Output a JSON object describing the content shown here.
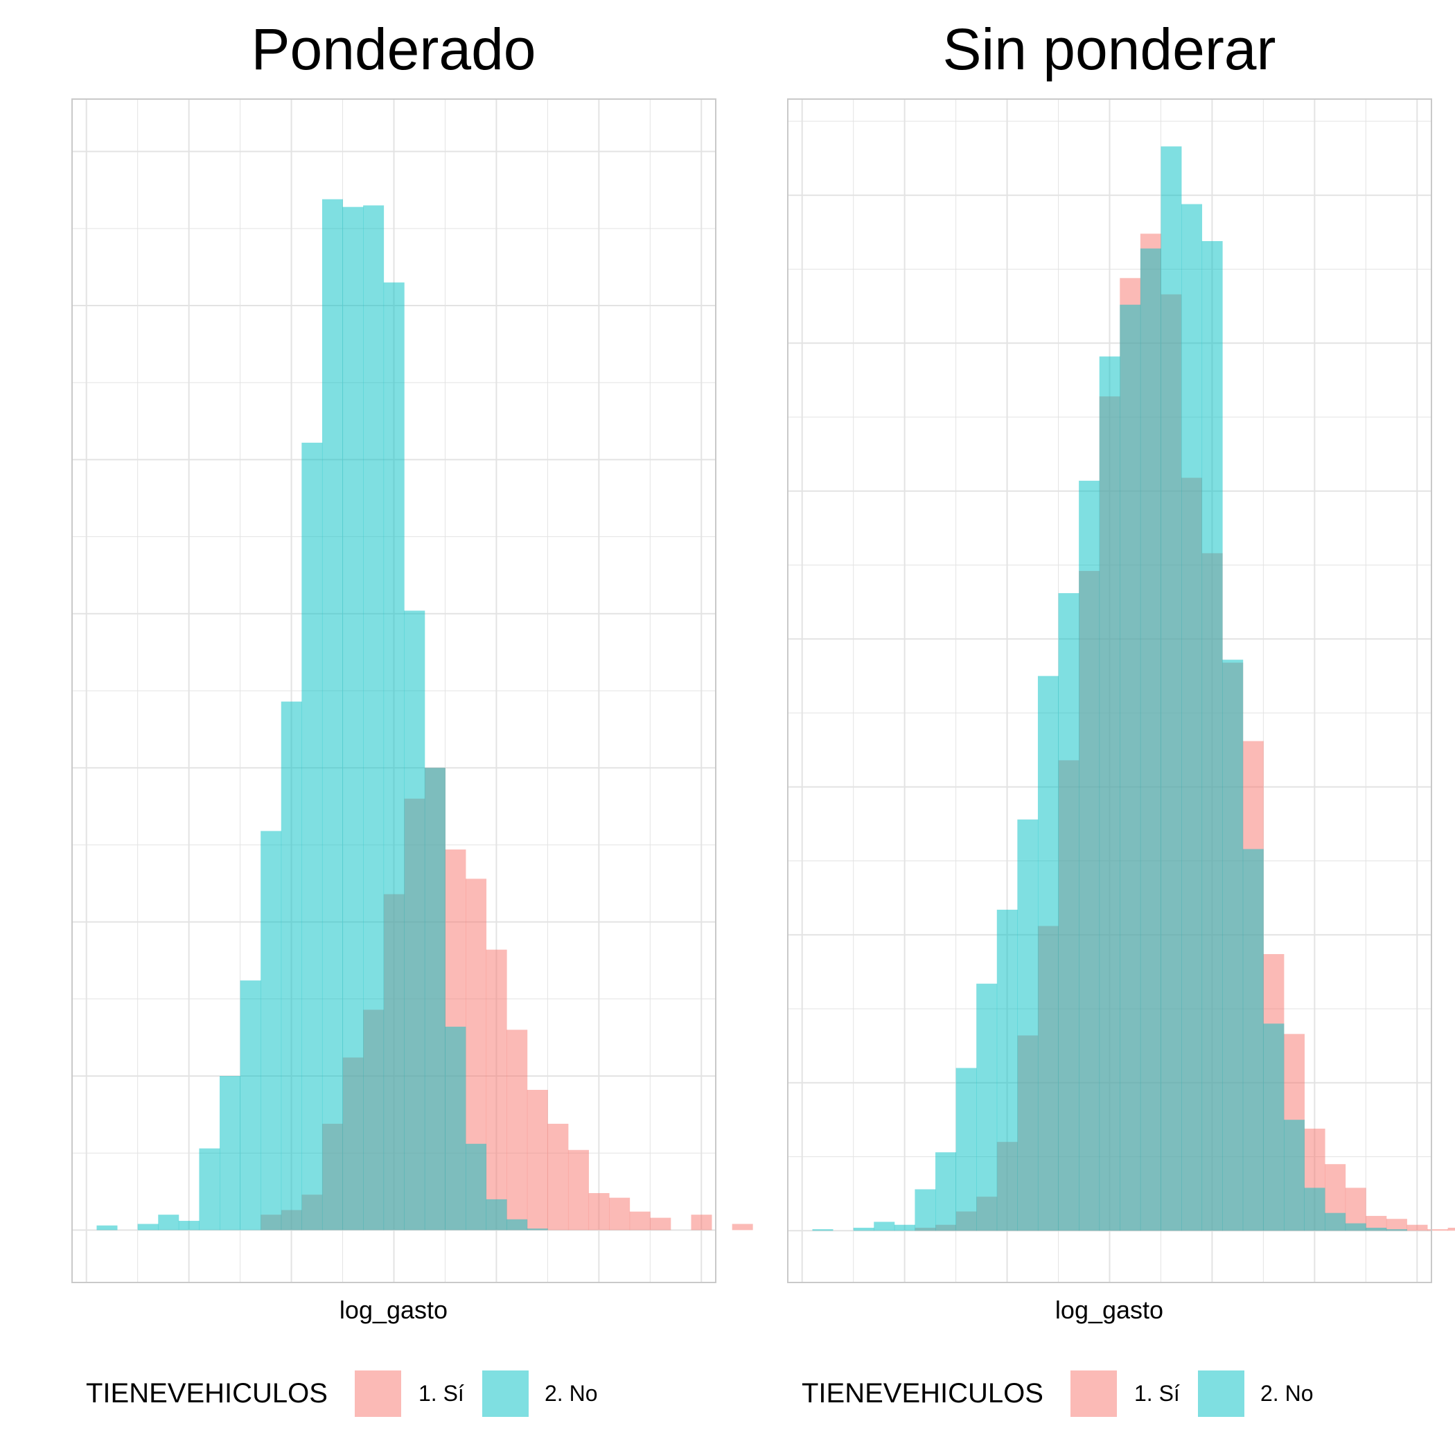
{
  "colors": {
    "si": "#F8766D",
    "no": "#00BFC4",
    "grid": "#e3e3e3",
    "border": "#c9c9c9"
  },
  "chart_data": [
    {
      "type": "bar",
      "subtype": "histogram-overlay",
      "title": "Ponderado",
      "xlabel": "log_gasto",
      "ylabel": "",
      "xlim": [
        -0.7,
        30.7
      ],
      "ylim": [
        -3.4,
        73.4
      ],
      "grid": true,
      "tick_labels_shown": false,
      "legend": {
        "title": "TIENEVEHICULOS",
        "position": "bottom",
        "entries": [
          "1. Sí",
          "2. No"
        ]
      },
      "bin_width": 1,
      "bin_start": 1,
      "series": [
        {
          "name": "1. Sí",
          "color": "#F8766D",
          "values": [
            0,
            0,
            0,
            0,
            0,
            0,
            0,
            0,
            1,
            1.3,
            2.3,
            6.9,
            11.2,
            14.3,
            21.8,
            28,
            30,
            24.7,
            22.8,
            18.2,
            13,
            9.1,
            6.9,
            5.2,
            2.4,
            2.1,
            1.2,
            0.8,
            0,
            1,
            0,
            0.4
          ]
        },
        {
          "name": "2. No",
          "color": "#00BFC4",
          "values": [
            0.3,
            0,
            0.4,
            1,
            0.6,
            5.3,
            10,
            16.2,
            25.9,
            34.3,
            51.1,
            66.9,
            66.4,
            66.5,
            61.5,
            40.2,
            30,
            13.2,
            5.6,
            2,
            0.7,
            0.1,
            0,
            0,
            0,
            0,
            0,
            0,
            0,
            0,
            0,
            0
          ]
        }
      ]
    },
    {
      "type": "bar",
      "subtype": "histogram-overlay",
      "title": "Sin ponderar",
      "xlabel": "log_gasto",
      "ylabel": "",
      "xlim": [
        -0.7,
        30.7
      ],
      "ylim": [
        -3.5,
        76.5
      ],
      "grid": true,
      "tick_labels_shown": false,
      "legend": {
        "title": "TIENEVEHICULOS",
        "position": "bottom",
        "entries": [
          "1. Sí",
          "2. No"
        ]
      },
      "bin_width": 1,
      "bin_start": 1,
      "series": [
        {
          "name": "1. Sí",
          "color": "#F8766D",
          "values": [
            0,
            0,
            0,
            0,
            0,
            0.2,
            0.4,
            1.3,
            2.3,
            6,
            13.2,
            20.6,
            31.8,
            44.6,
            56.4,
            64.4,
            67.4,
            63.3,
            50.9,
            45.8,
            38.4,
            33.1,
            18.7,
            13.3,
            6.9,
            4.5,
            2.9,
            1,
            0.8,
            0.4,
            0.1,
            0.2
          ]
        },
        {
          "name": "2. No",
          "color": "#00BFC4",
          "values": [
            0.1,
            0,
            0.2,
            0.6,
            0.4,
            2.8,
            5.3,
            11,
            16.7,
            21.7,
            27.8,
            37.5,
            43.1,
            50.7,
            59.1,
            62.6,
            66.4,
            73.3,
            69.4,
            66.9,
            38.6,
            25.8,
            14,
            7.5,
            2.9,
            1.2,
            0.5,
            0.2,
            0.1,
            0,
            0,
            0
          ]
        }
      ]
    }
  ]
}
